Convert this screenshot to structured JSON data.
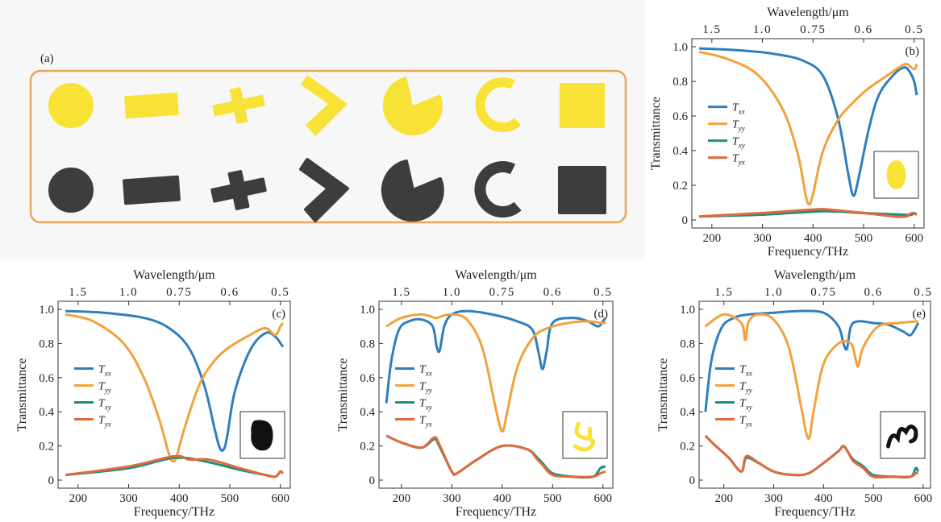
{
  "panel_a": {
    "label": "(a)",
    "colors": {
      "frame": "#e8a65a",
      "design": "#f8e235",
      "fabricated": "#3d3d3d"
    },
    "shapes": [
      "disk",
      "bar",
      "cross",
      "chevron",
      "pacman",
      "arc",
      "square"
    ]
  },
  "chart_data": [
    {
      "panel": "(b)",
      "type": "line",
      "xlabel": "Frequency/THz",
      "ylabel": "Transmittance",
      "top_label": "Wavelength/μm",
      "xlim": [
        170,
        610
      ],
      "ylim": [
        0,
        1.0
      ],
      "xticks": [
        200,
        300,
        400,
        500,
        600
      ],
      "yticks": [
        0,
        0.2,
        0.4,
        0.6,
        0.8,
        1.0
      ],
      "top_ticks": [
        "1.5",
        "1.0",
        "0.75",
        "0.6",
        "0.5"
      ],
      "inset": {
        "type": "ellipse",
        "color": "#f8e235"
      },
      "series": [
        {
          "name": "T",
          "sub": "xx",
          "color": "#2f7fbd",
          "x": [
            175,
            250,
            320,
            380,
            420,
            450,
            470,
            480,
            490,
            510,
            530,
            560,
            580,
            590,
            600,
            605
          ],
          "y": [
            0.99,
            0.98,
            0.96,
            0.92,
            0.83,
            0.58,
            0.26,
            0.14,
            0.24,
            0.52,
            0.72,
            0.84,
            0.88,
            0.86,
            0.8,
            0.72
          ]
        },
        {
          "name": "T",
          "sub": "yy",
          "color": "#f2a23c",
          "x": [
            175,
            230,
            290,
            340,
            370,
            385,
            392,
            400,
            420,
            450,
            480,
            510,
            540,
            570,
            585,
            600,
            605
          ],
          "y": [
            0.97,
            0.93,
            0.84,
            0.64,
            0.38,
            0.15,
            0.09,
            0.15,
            0.4,
            0.58,
            0.68,
            0.76,
            0.82,
            0.88,
            0.9,
            0.87,
            0.9
          ]
        },
        {
          "name": "T",
          "sub": "xy",
          "color": "#1b8f7c",
          "x": [
            175,
            300,
            420,
            500,
            580,
            595,
            600,
            605
          ],
          "y": [
            0.02,
            0.03,
            0.05,
            0.04,
            0.03,
            0.03,
            0.04,
            0.03
          ]
        },
        {
          "name": "T",
          "sub": "yx",
          "color": "#e06a3d",
          "x": [
            175,
            300,
            400,
            430,
            500,
            560,
            585,
            595,
            605
          ],
          "y": [
            0.02,
            0.04,
            0.06,
            0.06,
            0.04,
            0.02,
            0.02,
            0.04,
            0.03
          ]
        }
      ]
    },
    {
      "panel": "(c)",
      "type": "line",
      "xlabel": "Frequency/THz",
      "ylabel": "Transmittance",
      "top_label": "Wavelength/μm",
      "xlim": [
        170,
        610
      ],
      "ylim": [
        0,
        1.0
      ],
      "xticks": [
        200,
        300,
        400,
        500,
        600
      ],
      "yticks": [
        0,
        0.2,
        0.4,
        0.6,
        0.8,
        1.0
      ],
      "top_ticks": [
        "1.5",
        "1.0",
        "0.75",
        "0.6",
        "0.5"
      ],
      "inset": {
        "type": "blob",
        "color": "#111111"
      },
      "series": [
        {
          "name": "T",
          "sub": "xx",
          "color": "#2f7fbd",
          "x": [
            175,
            250,
            330,
            380,
            420,
            450,
            470,
            480,
            488,
            495,
            510,
            540,
            570,
            590,
            605
          ],
          "y": [
            0.99,
            0.98,
            0.95,
            0.89,
            0.77,
            0.55,
            0.3,
            0.19,
            0.18,
            0.26,
            0.52,
            0.76,
            0.86,
            0.84,
            0.78
          ]
        },
        {
          "name": "T",
          "sub": "yy",
          "color": "#f2a23c",
          "x": [
            175,
            230,
            290,
            330,
            360,
            380,
            388,
            395,
            410,
            440,
            470,
            500,
            540,
            570,
            590,
            600,
            605
          ],
          "y": [
            0.97,
            0.93,
            0.8,
            0.6,
            0.36,
            0.15,
            0.11,
            0.14,
            0.3,
            0.56,
            0.7,
            0.78,
            0.85,
            0.89,
            0.85,
            0.9,
            0.92
          ]
        },
        {
          "name": "T",
          "sub": "xy",
          "color": "#1b8f7c",
          "x": [
            175,
            300,
            390,
            450,
            520,
            570,
            590,
            600,
            605
          ],
          "y": [
            0.03,
            0.07,
            0.13,
            0.11,
            0.06,
            0.03,
            0.02,
            0.05,
            0.04
          ]
        },
        {
          "name": "T",
          "sub": "yx",
          "color": "#e06a3d",
          "x": [
            175,
            300,
            390,
            420,
            460,
            520,
            570,
            590,
            600,
            605
          ],
          "y": [
            0.03,
            0.08,
            0.14,
            0.12,
            0.12,
            0.07,
            0.03,
            0.02,
            0.05,
            0.04
          ]
        }
      ]
    },
    {
      "panel": "(d)",
      "type": "line",
      "xlabel": "Frequency/THz",
      "ylabel": "Transmittance",
      "top_label": "Wavelength/μm",
      "xlim": [
        165,
        610
      ],
      "ylim": [
        0,
        1.0
      ],
      "xticks": [
        200,
        300,
        400,
        500,
        600
      ],
      "yticks": [
        0,
        0.2,
        0.4,
        0.6,
        0.8,
        1.0
      ],
      "top_ticks": [
        "1.5",
        "1.0",
        "0.75",
        "0.6",
        "0.5"
      ],
      "inset": {
        "type": "hook",
        "color": "#f8e235"
      },
      "series": [
        {
          "name": "T",
          "sub": "xx",
          "color": "#2f7fbd",
          "x": [
            170,
            180,
            195,
            215,
            240,
            262,
            270,
            276,
            285,
            300,
            330,
            380,
            430,
            460,
            472,
            480,
            488,
            500,
            540,
            570,
            590,
            600,
            605
          ],
          "y": [
            0.45,
            0.7,
            0.88,
            0.93,
            0.94,
            0.9,
            0.78,
            0.76,
            0.9,
            0.97,
            0.99,
            0.97,
            0.93,
            0.88,
            0.75,
            0.65,
            0.75,
            0.92,
            0.95,
            0.93,
            0.9,
            0.93,
            0.95
          ]
        },
        {
          "name": "T",
          "sub": "yy",
          "color": "#f2a23c",
          "x": [
            170,
            200,
            240,
            268,
            280,
            300,
            330,
            360,
            385,
            395,
            402,
            410,
            430,
            460,
            490,
            530,
            570,
            600,
            605
          ],
          "y": [
            0.9,
            0.95,
            0.97,
            0.95,
            0.96,
            0.97,
            0.94,
            0.78,
            0.45,
            0.32,
            0.29,
            0.4,
            0.66,
            0.83,
            0.89,
            0.92,
            0.93,
            0.92,
            0.93
          ]
        },
        {
          "name": "T",
          "sub": "xy",
          "color": "#1b8f7c",
          "x": [
            170,
            200,
            240,
            265,
            275,
            300,
            310,
            350,
            400,
            450,
            470,
            480,
            500,
            540,
            580,
            595,
            605
          ],
          "y": [
            0.26,
            0.22,
            0.19,
            0.24,
            0.2,
            0.05,
            0.04,
            0.12,
            0.2,
            0.18,
            0.13,
            0.1,
            0.04,
            0.02,
            0.02,
            0.07,
            0.08
          ]
        },
        {
          "name": "T",
          "sub": "yx",
          "color": "#e06a3d",
          "x": [
            170,
            200,
            240,
            265,
            275,
            300,
            310,
            350,
            400,
            450,
            470,
            480,
            500,
            540,
            580,
            595,
            605
          ],
          "y": [
            0.26,
            0.22,
            0.19,
            0.25,
            0.21,
            0.05,
            0.04,
            0.12,
            0.2,
            0.18,
            0.12,
            0.09,
            0.03,
            0.02,
            0.02,
            0.04,
            0.05
          ]
        }
      ]
    },
    {
      "panel": "(e)",
      "type": "line",
      "xlabel": "Frequency/THz",
      "ylabel": "Transmittance",
      "top_label": "Wavelength/μm",
      "xlim": [
        160,
        605
      ],
      "ylim": [
        0,
        1.0
      ],
      "xticks": [
        200,
        300,
        400,
        500,
        600
      ],
      "yticks": [
        0,
        0.2,
        0.4,
        0.6,
        0.8,
        1.0
      ],
      "top_ticks": [
        "1.5",
        "1.0",
        "0.75",
        "0.6",
        "0.5"
      ],
      "inset": {
        "type": "scribble",
        "color": "#111111"
      },
      "series": [
        {
          "name": "T",
          "sub": "xx",
          "color": "#2f7fbd",
          "x": [
            163,
            175,
            195,
            220,
            250,
            300,
            350,
            400,
            430,
            440,
            447,
            455,
            470,
            500,
            530,
            560,
            575,
            590
          ],
          "y": [
            0.4,
            0.7,
            0.89,
            0.95,
            0.97,
            0.98,
            0.99,
            0.98,
            0.9,
            0.8,
            0.77,
            0.9,
            0.93,
            0.92,
            0.91,
            0.87,
            0.85,
            0.92
          ]
        },
        {
          "name": "T",
          "sub": "yy",
          "color": "#f2a23c",
          "x": [
            163,
            200,
            235,
            243,
            250,
            270,
            300,
            330,
            355,
            365,
            372,
            380,
            400,
            430,
            455,
            465,
            470,
            480,
            510,
            550,
            590
          ],
          "y": [
            0.9,
            0.97,
            0.92,
            0.82,
            0.93,
            0.97,
            0.94,
            0.78,
            0.43,
            0.28,
            0.25,
            0.4,
            0.68,
            0.8,
            0.8,
            0.7,
            0.67,
            0.78,
            0.9,
            0.92,
            0.93
          ]
        },
        {
          "name": "T",
          "sub": "xy",
          "color": "#1b8f7c",
          "x": [
            163,
            180,
            210,
            235,
            245,
            270,
            300,
            340,
            370,
            400,
            430,
            440,
            450,
            460,
            480,
            500,
            540,
            575,
            585,
            590
          ],
          "y": [
            0.26,
            0.21,
            0.13,
            0.05,
            0.13,
            0.1,
            0.05,
            0.03,
            0.04,
            0.1,
            0.17,
            0.2,
            0.16,
            0.12,
            0.08,
            0.03,
            0.02,
            0.02,
            0.07,
            0.05
          ]
        },
        {
          "name": "T",
          "sub": "yx",
          "color": "#e06a3d",
          "x": [
            163,
            180,
            210,
            235,
            245,
            270,
            300,
            340,
            370,
            400,
            430,
            440,
            450,
            460,
            480,
            500,
            540,
            575,
            585,
            590
          ],
          "y": [
            0.26,
            0.21,
            0.13,
            0.05,
            0.14,
            0.1,
            0.05,
            0.03,
            0.04,
            0.1,
            0.17,
            0.2,
            0.16,
            0.11,
            0.07,
            0.02,
            0.02,
            0.02,
            0.04,
            0.04
          ]
        }
      ]
    }
  ]
}
